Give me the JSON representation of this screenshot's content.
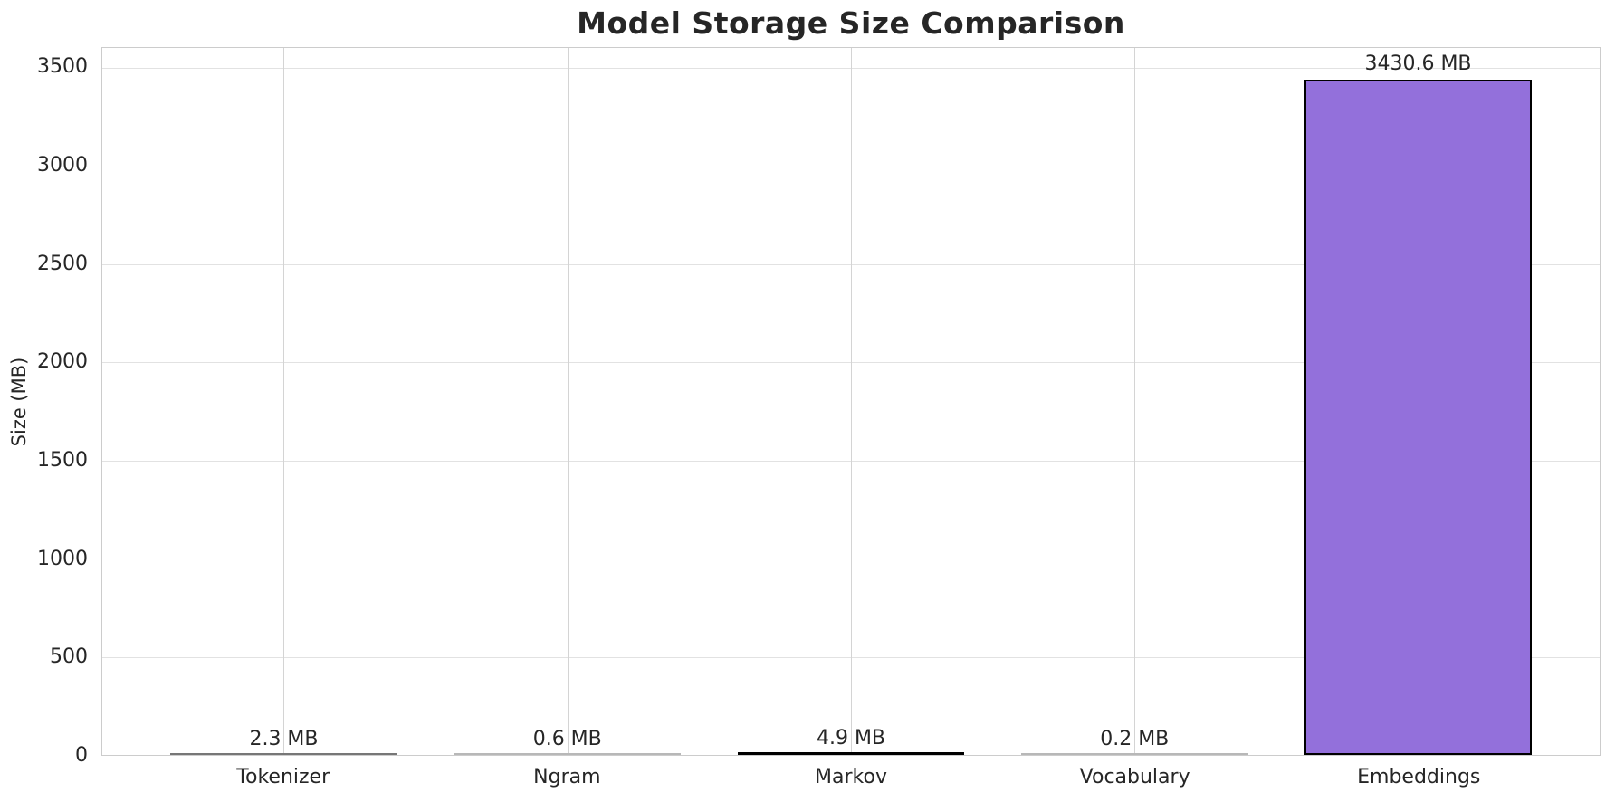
{
  "chart_data": {
    "type": "bar",
    "title": "Model Storage Size Comparison",
    "xlabel": "",
    "ylabel": "Size (MB)",
    "categories": [
      "Tokenizer",
      "Ngram",
      "Markov",
      "Vocabulary",
      "Embeddings"
    ],
    "values": [
      2.3,
      0.6,
      4.9,
      0.2,
      3430.6
    ],
    "bar_labels": [
      "2.3 MB",
      "0.6 MB",
      "4.9 MB",
      "0.2 MB",
      "3430.6 MB"
    ],
    "yticks": [
      0,
      500,
      1000,
      1500,
      2000,
      2500,
      3000,
      3500
    ],
    "ylim": [
      0,
      3602
    ],
    "grid": true,
    "legend": false,
    "bar_color": "#9370DB",
    "bar_edge_color": "#000000",
    "grid_color": "#e2e2e2",
    "grid_color_vertical": "#d4d4d4",
    "axes_edge_color": "#cccccc",
    "text_color": "#262626"
  }
}
